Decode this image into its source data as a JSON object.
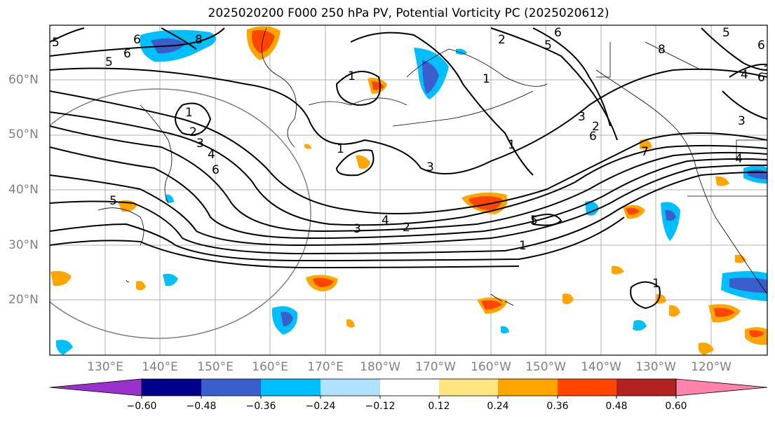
{
  "title": "2025020200 F000 250 hPa PV, Potential Vorticity PC (2025020612)",
  "lat_labels": [
    "60°N",
    "50°N",
    "40°N",
    "30°N",
    "20°N"
  ],
  "lon_labels": [
    "130°E",
    "140°E",
    "150°E",
    "160°E",
    "170°E",
    "180°W",
    "170°W",
    "160°W",
    "150°W",
    "140°W",
    "130°W",
    "120°W"
  ],
  "contour_labels": [
    "5",
    "6",
    "8",
    "6",
    "5",
    "6",
    "2",
    "5",
    "6",
    "1",
    "1",
    "1",
    "2",
    "3",
    "4",
    "6",
    "1",
    "3",
    "1",
    "3",
    "2",
    "6",
    "7",
    "8",
    "4",
    "5",
    "4",
    "3",
    "2",
    "5",
    "1",
    "1",
    "5",
    "3",
    "4",
    "6",
    "3"
  ],
  "colorbar": {
    "ticks": [
      "−0.60",
      "−0.48",
      "−0.36",
      "−0.24",
      "−0.12",
      "0.12",
      "0.24",
      "0.36",
      "0.48",
      "0.60"
    ],
    "colors": [
      "#9932cc",
      "#00008b",
      "#3a5fcd",
      "#00bfff",
      "#b0e2ff",
      "#ffffff",
      "#ffe680",
      "#ffa500",
      "#ff4500",
      "#b22222",
      "#ff82ab"
    ]
  }
}
